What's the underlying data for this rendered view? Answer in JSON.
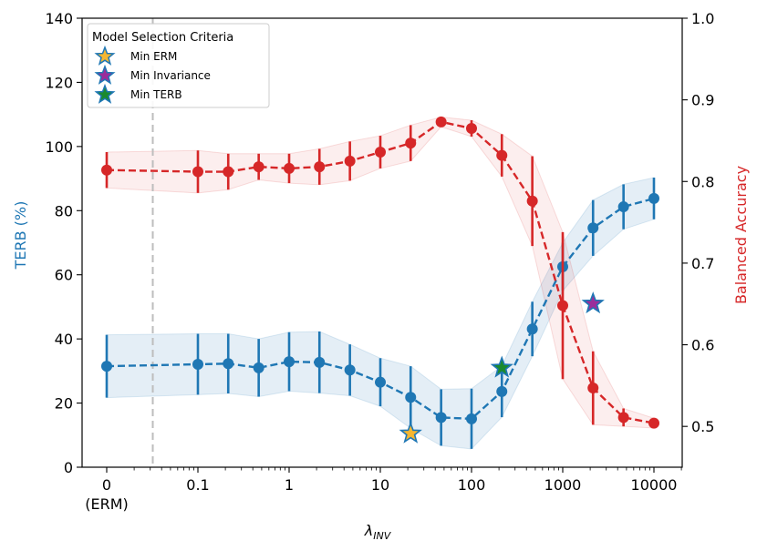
{
  "chart_data": {
    "type": "line",
    "xlabel_main": "λ",
    "xlabel_sub": "INV",
    "ylabel_left": "TERB (%)",
    "ylabel_right": "Balanced Accuracy",
    "x_tick_labels": [
      "0",
      "0.1",
      "1",
      "10",
      "100",
      "1000",
      "10000"
    ],
    "x_tick_sublabel": "(ERM)",
    "y_left_ticks": [
      "0",
      "20",
      "40",
      "60",
      "80",
      "100",
      "120",
      "140"
    ],
    "y_right_ticks": [
      "0.5",
      "0.6",
      "0.7",
      "0.8",
      "0.9",
      "1.0"
    ],
    "ylim_left": [
      0,
      140
    ],
    "ylim_right": [
      0.45,
      1.0
    ],
    "erm_divider_x": 0.032,
    "x": [
      0,
      0.1,
      0.215,
      0.464,
      1,
      2.15,
      4.64,
      10,
      21.5,
      46.4,
      100,
      215,
      464,
      1000,
      2150,
      4640,
      10000
    ],
    "series": [
      {
        "name": "TERB (%)",
        "axis": "left",
        "color": "#1f77b4",
        "values": [
          31.5,
          32.1,
          32.3,
          31.0,
          32.9,
          32.7,
          30.3,
          26.5,
          21.8,
          15.5,
          15.1,
          23.6,
          43.1,
          62.5,
          74.6,
          81.2,
          83.8
        ],
        "err": [
          9.8,
          9.5,
          9.3,
          9.0,
          9.2,
          9.6,
          8.0,
          7.5,
          9.7,
          8.8,
          9.4,
          8.0,
          8.5,
          7.5,
          8.7,
          7.0,
          6.5
        ]
      },
      {
        "name": "Balanced Accuracy",
        "axis": "right",
        "color": "#d62728",
        "values": [
          0.814,
          0.812,
          0.812,
          0.818,
          0.816,
          0.818,
          0.825,
          0.836,
          0.847,
          0.873,
          0.865,
          0.832,
          0.776,
          0.648,
          0.547,
          0.511,
          0.504
        ],
        "err": [
          0.022,
          0.026,
          0.022,
          0.016,
          0.018,
          0.022,
          0.024,
          0.02,
          0.022,
          0.006,
          0.01,
          0.026,
          0.055,
          0.09,
          0.045,
          0.011,
          0.006
        ]
      }
    ],
    "legend": {
      "title": "Model Selection Criteria",
      "position": "top-left",
      "items": [
        {
          "label": "Min ERM",
          "fill": "#f5b731",
          "edge": "#1f77b4",
          "x": 21.5,
          "y": 10.5
        },
        {
          "label": "Min Invariance",
          "fill": "#9b2d9b",
          "edge": "#1f77b4",
          "x": 2150,
          "y": 51.0
        },
        {
          "label": "Min TERB",
          "fill": "#1b8a2e",
          "edge": "#1f77b4",
          "x": 215,
          "y": 31.0
        }
      ]
    },
    "grid": false
  }
}
